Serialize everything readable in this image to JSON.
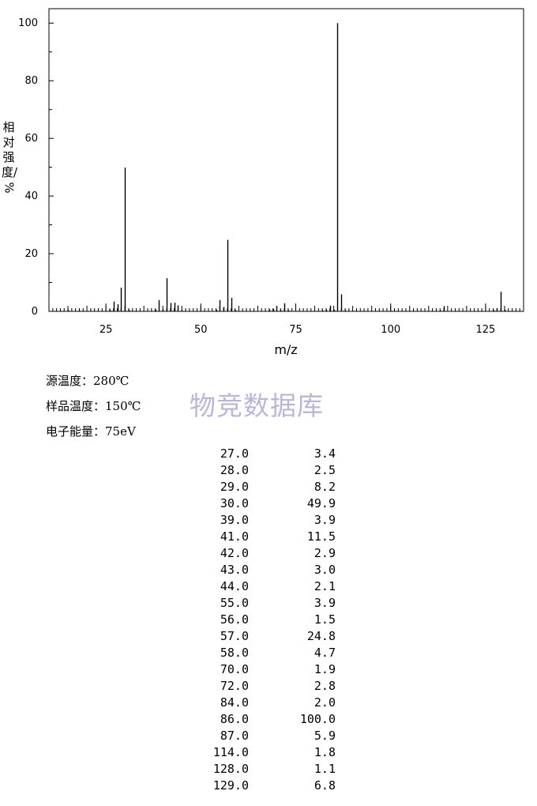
{
  "chart_data": {
    "type": "bar",
    "xlabel": "m/z",
    "ylabel": "相对强度/%",
    "xlim": [
      10,
      135
    ],
    "ylim": [
      0,
      105
    ],
    "xticks": [
      "25",
      "50",
      "75",
      "100",
      "125"
    ],
    "yticks": [
      "0",
      "20",
      "40",
      "60",
      "80",
      "100"
    ],
    "peaks": [
      {
        "mz": 15,
        "intensity": 0.6
      },
      {
        "mz": 18,
        "intensity": 0.4
      },
      {
        "mz": 26,
        "intensity": 0.6
      },
      {
        "mz": 27,
        "intensity": 3.4
      },
      {
        "mz": 28,
        "intensity": 2.5
      },
      {
        "mz": 29,
        "intensity": 8.2
      },
      {
        "mz": 30,
        "intensity": 49.9
      },
      {
        "mz": 31,
        "intensity": 0.6
      },
      {
        "mz": 38,
        "intensity": 0.6
      },
      {
        "mz": 39,
        "intensity": 3.9
      },
      {
        "mz": 40,
        "intensity": 0.8
      },
      {
        "mz": 41,
        "intensity": 11.5
      },
      {
        "mz": 42,
        "intensity": 2.9
      },
      {
        "mz": 43,
        "intensity": 3.0
      },
      {
        "mz": 44,
        "intensity": 2.1
      },
      {
        "mz": 45,
        "intensity": 0.4
      },
      {
        "mz": 54,
        "intensity": 0.5
      },
      {
        "mz": 55,
        "intensity": 3.9
      },
      {
        "mz": 56,
        "intensity": 1.5
      },
      {
        "mz": 57,
        "intensity": 24.8
      },
      {
        "mz": 58,
        "intensity": 4.7
      },
      {
        "mz": 59,
        "intensity": 0.4
      },
      {
        "mz": 68,
        "intensity": 0.6
      },
      {
        "mz": 69,
        "intensity": 0.8
      },
      {
        "mz": 70,
        "intensity": 1.9
      },
      {
        "mz": 71,
        "intensity": 0.6
      },
      {
        "mz": 72,
        "intensity": 2.8
      },
      {
        "mz": 73,
        "intensity": 0.4
      },
      {
        "mz": 82,
        "intensity": 0.4
      },
      {
        "mz": 83,
        "intensity": 0.6
      },
      {
        "mz": 84,
        "intensity": 2.0
      },
      {
        "mz": 85,
        "intensity": 0.6
      },
      {
        "mz": 86,
        "intensity": 100.0
      },
      {
        "mz": 87,
        "intensity": 5.9
      },
      {
        "mz": 88,
        "intensity": 0.4
      },
      {
        "mz": 113,
        "intensity": 0.4
      },
      {
        "mz": 114,
        "intensity": 1.8
      },
      {
        "mz": 127,
        "intensity": 0.4
      },
      {
        "mz": 128,
        "intensity": 1.1
      },
      {
        "mz": 129,
        "intensity": 6.8
      },
      {
        "mz": 130,
        "intensity": 0.6
      }
    ],
    "grid": false
  },
  "conditions": {
    "source_temp": "源温度：280℃",
    "sample_temp": "样品温度：150℃",
    "electron_energy": "电子能量：75eV"
  },
  "watermark": "物竞数据库",
  "peak_table": [
    {
      "mz": "27.0",
      "intensity": "3.4"
    },
    {
      "mz": "28.0",
      "intensity": "2.5"
    },
    {
      "mz": "29.0",
      "intensity": "8.2"
    },
    {
      "mz": "30.0",
      "intensity": "49.9"
    },
    {
      "mz": "39.0",
      "intensity": "3.9"
    },
    {
      "mz": "41.0",
      "intensity": "11.5"
    },
    {
      "mz": "42.0",
      "intensity": "2.9"
    },
    {
      "mz": "43.0",
      "intensity": "3.0"
    },
    {
      "mz": "44.0",
      "intensity": "2.1"
    },
    {
      "mz": "55.0",
      "intensity": "3.9"
    },
    {
      "mz": "56.0",
      "intensity": "1.5"
    },
    {
      "mz": "57.0",
      "intensity": "24.8"
    },
    {
      "mz": "58.0",
      "intensity": "4.7"
    },
    {
      "mz": "70.0",
      "intensity": "1.9"
    },
    {
      "mz": "72.0",
      "intensity": "2.8"
    },
    {
      "mz": "84.0",
      "intensity": "2.0"
    },
    {
      "mz": "86.0",
      "intensity": "100.0"
    },
    {
      "mz": "87.0",
      "intensity": "5.9"
    },
    {
      "mz": "114.0",
      "intensity": "1.8"
    },
    {
      "mz": "128.0",
      "intensity": "1.1"
    },
    {
      "mz": "129.0",
      "intensity": "6.8"
    }
  ]
}
